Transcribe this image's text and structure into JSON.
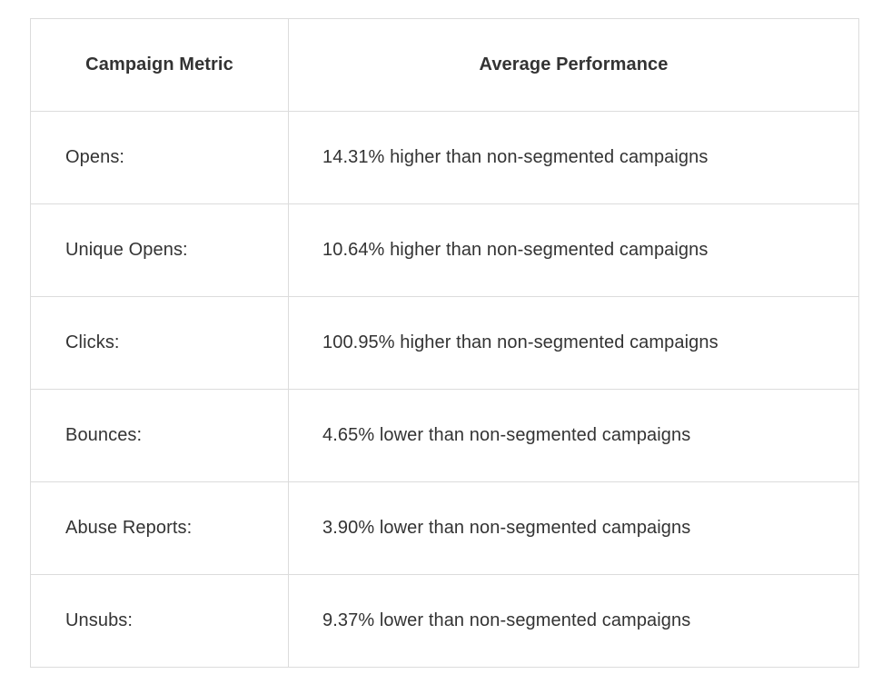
{
  "table": {
    "headers": [
      "Campaign Metric",
      "Average Performance"
    ],
    "rows": [
      {
        "metric": "Opens:",
        "performance": "14.31% higher than non-segmented campaigns"
      },
      {
        "metric": "Unique Opens:",
        "performance": "10.64% higher than non-segmented campaigns"
      },
      {
        "metric": "Clicks:",
        "performance": "100.95% higher than non-segmented campaigns"
      },
      {
        "metric": "Bounces:",
        "performance": "4.65% lower than non-segmented campaigns"
      },
      {
        "metric": "Abuse Reports:",
        "performance": "3.90% lower than non-segmented campaigns"
      },
      {
        "metric": "Unsubs:",
        "performance": "9.37% lower than non-segmented campaigns"
      }
    ]
  }
}
